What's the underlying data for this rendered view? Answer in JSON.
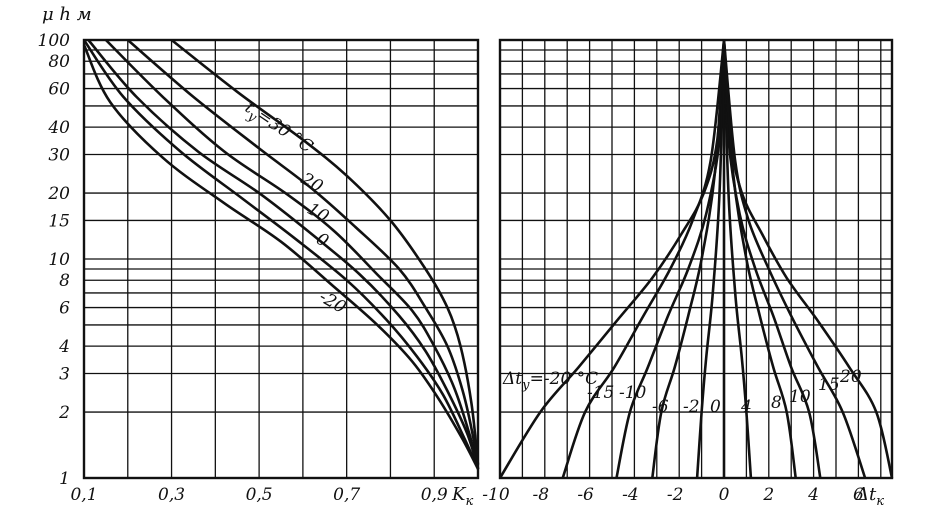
{
  "chart_data": [
    {
      "type": "line",
      "ylabel": "μ h м",
      "xlabel": "K",
      "xlabel_sub": "к",
      "x_tick_labels": [
        "0,1",
        "0,3",
        "0,5",
        "0,7",
        "0,9"
      ],
      "y_tick_labels": [
        "100",
        "80",
        "60",
        "40",
        "30",
        "20",
        "15",
        "10",
        "8",
        "6",
        "4",
        "3",
        "2",
        "1"
      ],
      "xlim": [
        0.1,
        1.0
      ],
      "ylim": [
        1,
        100
      ],
      "yscale": "log",
      "grid": true,
      "series_prefix": "t",
      "series_prefix_sub": "у",
      "series_eq": "=30 °C",
      "series": [
        {
          "label": "",
          "x": [
            0.3,
            0.45,
            0.6,
            0.7,
            0.8,
            0.88,
            0.93,
            0.96,
            0.985,
            1.0
          ],
          "y": [
            100,
            58,
            35,
            24,
            15,
            9,
            6,
            4,
            2.2,
            1.15
          ]
        },
        {
          "label": "20",
          "x": [
            0.2,
            0.35,
            0.5,
            0.62,
            0.72,
            0.82,
            0.88,
            0.93,
            0.965,
            0.99,
            1.0
          ],
          "y": [
            100,
            55,
            32,
            21,
            14,
            9,
            6,
            4,
            2.5,
            1.5,
            1.1
          ]
        },
        {
          "label": "10",
          "x": [
            0.15,
            0.28,
            0.42,
            0.56,
            0.67,
            0.77,
            0.85,
            0.9,
            0.945,
            0.98,
            1.0
          ],
          "y": [
            100,
            55,
            31,
            20,
            13.5,
            8.5,
            5.8,
            4,
            2.6,
            1.6,
            1.1
          ]
        },
        {
          "label": "0",
          "x": [
            0.11,
            0.22,
            0.36,
            0.5,
            0.62,
            0.73,
            0.82,
            0.88,
            0.93,
            0.975,
            1.0
          ],
          "y": [
            100,
            55,
            31,
            20,
            13,
            8.5,
            5.5,
            3.8,
            2.5,
            1.6,
            1.1
          ]
        },
        {
          "label": "",
          "x": [
            0.1,
            0.19,
            0.32,
            0.46,
            0.58,
            0.7,
            0.79,
            0.86,
            0.92,
            0.97,
            1.0
          ],
          "y": [
            100,
            55,
            31,
            19,
            12.5,
            8,
            5.3,
            3.6,
            2.4,
            1.5,
            1.1
          ]
        },
        {
          "label": "-20",
          "x": [
            0.1,
            0.16,
            0.28,
            0.42,
            0.55,
            0.67,
            0.77,
            0.85,
            0.91,
            0.965,
            1.0
          ],
          "y": [
            95,
            52,
            29,
            18,
            12,
            7.5,
            5,
            3.4,
            2.3,
            1.5,
            1.1
          ]
        }
      ]
    },
    {
      "type": "line",
      "xlabel": "Δt",
      "xlabel_sub": "к",
      "x_tick_labels": [
        "-10",
        "-8",
        "-6",
        "-4",
        "-2",
        "0",
        "2",
        "4",
        "6"
      ],
      "xlim": [
        -10,
        7.5
      ],
      "ylim": [
        1,
        100
      ],
      "yscale": "log",
      "grid": true,
      "series_prefix": "Δt",
      "series_prefix_sub": "у",
      "series_eq": "=-20 °C",
      "series": [
        {
          "label": "",
          "x": [
            -10,
            -8.2,
            -6.5,
            -4.8,
            -3.2,
            -1.9,
            -0.9,
            -0.3,
            0
          ],
          "y": [
            1,
            2,
            3.2,
            5.2,
            8.2,
            13,
            20,
            35,
            100
          ]
        },
        {
          "label": "-15",
          "x": [
            -7.2,
            -6.2,
            -4.9,
            -3.6,
            -2.4,
            -1.4,
            -0.6,
            0
          ],
          "y": [
            1,
            2,
            3.2,
            5.5,
            9,
            15,
            28,
            100
          ]
        },
        {
          "label": "-10",
          "x": [
            -4.8,
            -4.2,
            -3.4,
            -2.5,
            -1.6,
            -0.8,
            -0.2,
            0
          ],
          "y": [
            1,
            2,
            3.2,
            5.5,
            9,
            16,
            35,
            100
          ]
        },
        {
          "label": "-6",
          "x": [
            -3.2,
            -2.8,
            -2.2,
            -1.6,
            -1,
            -0.4,
            0
          ],
          "y": [
            1,
            2,
            3.2,
            5.5,
            10,
            25,
            100
          ]
        },
        {
          "label": "-2",
          "x": [
            -1.2,
            -1,
            -0.8,
            -0.5,
            -0.2,
            0
          ],
          "y": [
            1,
            2,
            3.5,
            7,
            20,
            100
          ]
        },
        {
          "label": "0",
          "x": [
            0,
            0,
            0
          ],
          "y": [
            1,
            30,
            100
          ]
        },
        {
          "label": "4",
          "x": [
            1.2,
            1,
            0.8,
            0.5,
            0.2,
            0
          ],
          "y": [
            1,
            2,
            3.5,
            7,
            20,
            100
          ]
        },
        {
          "label": "8",
          "x": [
            3.2,
            2.8,
            2.2,
            1.6,
            1,
            0.4,
            0
          ],
          "y": [
            1,
            2,
            3.2,
            5.5,
            10,
            25,
            100
          ]
        },
        {
          "label": "10",
          "x": [
            4.3,
            3.8,
            3,
            2.2,
            1.4,
            0.7,
            0.2,
            0
          ],
          "y": [
            1,
            2,
            3.2,
            5.5,
            9,
            16,
            35,
            100
          ]
        },
        {
          "label": "15",
          "x": [
            6.3,
            5.3,
            4.2,
            3,
            2,
            1.1,
            0.5,
            0
          ],
          "y": [
            1,
            2,
            3.2,
            5.5,
            9,
            15,
            28,
            100
          ]
        },
        {
          "label": "20",
          "x": [
            7.5,
            6.8,
            5.6,
            4.2,
            2.8,
            1.7,
            0.8,
            0.3,
            0
          ],
          "y": [
            1,
            2,
            3.2,
            5.2,
            8.2,
            13,
            20,
            35,
            100
          ]
        }
      ]
    }
  ]
}
